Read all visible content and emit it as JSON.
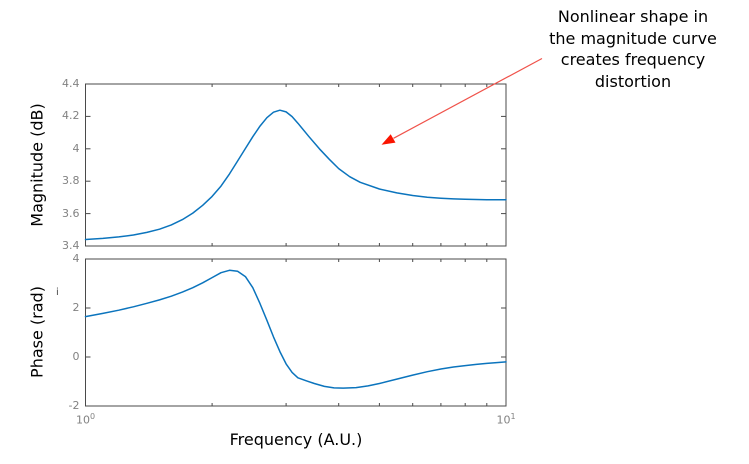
{
  "figure": {
    "background": "#ffffff",
    "axis_color": "#4a4a4a",
    "tick_label_color": "#828282",
    "curve_color": "#0b74bd"
  },
  "annotation": {
    "lines": [
      "Nonlinear shape in",
      "the magnitude curve",
      "creates frequency",
      "distortion"
    ],
    "text_color": "#000000",
    "arrow_line_color": "#f0524a",
    "arrow_head_color": "#fa1400"
  },
  "stray_mark": "i",
  "chart_data": [
    {
      "type": "line",
      "title": "",
      "xlabel": "",
      "ylabel": "Magnitude (dB)",
      "xscale": "log",
      "xlim": [
        1,
        10
      ],
      "ylim": [
        3.4,
        4.4
      ],
      "yticks": [
        3.4,
        3.6,
        3.8,
        4,
        4.2,
        4.4
      ],
      "ytick_labels": [
        "3.4",
        "3.6",
        "3.8",
        "4",
        "4.2",
        "4.4"
      ],
      "minor_xticks": [
        2,
        3,
        4,
        5,
        6,
        7,
        8,
        9
      ],
      "grid": false,
      "legend": false,
      "series": [
        {
          "name": "magnitude",
          "x": [
            1.0,
            1.1,
            1.2,
            1.3,
            1.4,
            1.5,
            1.6,
            1.7,
            1.8,
            1.9,
            2.0,
            2.1,
            2.2,
            2.3,
            2.4,
            2.5,
            2.6,
            2.7,
            2.8,
            2.9,
            3.0,
            3.1,
            3.2,
            3.4,
            3.6,
            3.8,
            4.0,
            4.25,
            4.5,
            5.0,
            5.5,
            6.0,
            6.5,
            7.0,
            7.5,
            8.0,
            9.0,
            10.0
          ],
          "y": [
            3.44,
            3.447,
            3.456,
            3.468,
            3.484,
            3.504,
            3.53,
            3.563,
            3.603,
            3.651,
            3.706,
            3.77,
            3.845,
            3.925,
            4.002,
            4.075,
            4.14,
            4.192,
            4.226,
            4.238,
            4.228,
            4.199,
            4.158,
            4.075,
            4.0,
            3.935,
            3.878,
            3.828,
            3.793,
            3.752,
            3.728,
            3.712,
            3.701,
            3.695,
            3.691,
            3.688,
            3.686,
            3.685
          ]
        }
      ]
    },
    {
      "type": "line",
      "title": "",
      "xlabel": "Frequency (A.U.)",
      "ylabel": "Phase (rad)",
      "xscale": "log",
      "xlim": [
        1,
        10
      ],
      "ylim": [
        -2,
        4
      ],
      "yticks": [
        -2,
        0,
        2,
        4
      ],
      "ytick_labels": [
        "-2",
        "0",
        "2",
        "4"
      ],
      "xticks": [
        1,
        10
      ],
      "xtick_labels": [
        {
          "base": "10",
          "exp": "0"
        },
        {
          "base": "10",
          "exp": "1"
        }
      ],
      "minor_xticks": [
        2,
        3,
        4,
        5,
        6,
        7,
        8,
        9
      ],
      "grid": false,
      "legend": false,
      "series": [
        {
          "name": "phase",
          "x": [
            1.0,
            1.1,
            1.2,
            1.3,
            1.4,
            1.5,
            1.6,
            1.7,
            1.8,
            1.9,
            2.0,
            2.1,
            2.2,
            2.3,
            2.4,
            2.5,
            2.6,
            2.7,
            2.8,
            2.9,
            3.0,
            3.1,
            3.2,
            3.35,
            3.5,
            3.7,
            3.9,
            4.1,
            4.4,
            4.7,
            5.0,
            5.5,
            6.0,
            6.5,
            7.0,
            7.5,
            8.0,
            8.5,
            9.0,
            9.5,
            10.0
          ],
          "y": [
            1.65,
            1.78,
            1.91,
            2.05,
            2.19,
            2.33,
            2.48,
            2.65,
            2.83,
            3.03,
            3.24,
            3.44,
            3.54,
            3.5,
            3.28,
            2.83,
            2.18,
            1.5,
            0.82,
            0.22,
            -0.28,
            -0.63,
            -0.85,
            -0.97,
            -1.08,
            -1.2,
            -1.26,
            -1.27,
            -1.25,
            -1.18,
            -1.08,
            -0.9,
            -0.74,
            -0.6,
            -0.49,
            -0.41,
            -0.35,
            -0.3,
            -0.26,
            -0.23,
            -0.2
          ]
        }
      ]
    }
  ]
}
